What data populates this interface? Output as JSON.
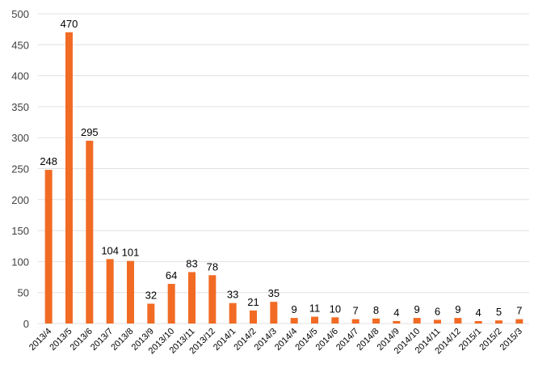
{
  "chart_data": {
    "type": "bar",
    "title": "",
    "xlabel": "",
    "ylabel": "",
    "ylim": [
      0,
      500
    ],
    "yticks": [
      0,
      50,
      100,
      150,
      200,
      250,
      300,
      350,
      400,
      450,
      500
    ],
    "grid": true,
    "bar_color": "#F26B24",
    "data_labels": true,
    "categories": [
      "2013/4",
      "2013/5",
      "2013/6",
      "2013/7",
      "2013/8",
      "2013/9",
      "2013/10",
      "2013/11",
      "2013/12",
      "2014/1",
      "2014/2",
      "2014/3",
      "2014/4",
      "2014/5",
      "2014/6",
      "2014/7",
      "2014/8",
      "2014/9",
      "2014/10",
      "2014/11",
      "2014/12",
      "2015/1",
      "2015/2",
      "2015/3"
    ],
    "values": [
      248,
      470,
      295,
      104,
      101,
      32,
      64,
      83,
      78,
      33,
      21,
      35,
      9,
      11,
      10,
      7,
      8,
      4,
      9,
      6,
      9,
      4,
      5,
      7
    ]
  }
}
